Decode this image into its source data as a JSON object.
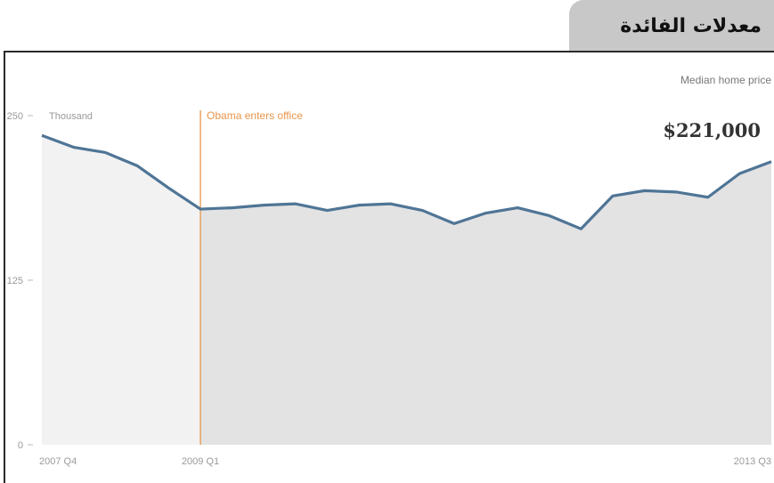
{
  "header": {
    "title": "معدلات الفائدة"
  },
  "chart_data": {
    "type": "area",
    "title": "",
    "ylabel_unit": "Thousand",
    "ylim": [
      0,
      250
    ],
    "yticks": [
      "250",
      "125",
      "0"
    ],
    "x_tick_labels": [
      "2007 Q4",
      "2009 Q1",
      "2013 Q3"
    ],
    "annotation": {
      "label": "Obama enters office",
      "at_x": "2009 Q1"
    },
    "callout": {
      "label": "Median home price",
      "value": "$221,000"
    },
    "series": [
      {
        "x": [
          "2007 Q4",
          "2008 Q1",
          "2008 Q2",
          "2008 Q3",
          "2008 Q4",
          "2009 Q1",
          "2009 Q2",
          "2009 Q3",
          "2009 Q4",
          "2010 Q1",
          "2010 Q2",
          "2010 Q3",
          "2010 Q4",
          "2011 Q1",
          "2011 Q2",
          "2011 Q3",
          "2011 Q4",
          "2012 Q1",
          "2012 Q2",
          "2012 Q3",
          "2012 Q4",
          "2013 Q1",
          "2013 Q2",
          "2013 Q3"
        ],
        "values": [
          235,
          226,
          222,
          212,
          195,
          179,
          180,
          182,
          183,
          178,
          182,
          183,
          178,
          168,
          176,
          180,
          174,
          164,
          189,
          193,
          192,
          188,
          206,
          215
        ]
      }
    ],
    "colors": {
      "line": "#4f7596",
      "area_before": "#f2f2f2",
      "area_after": "#e3e3e3",
      "annotation": "#e8944a"
    }
  }
}
